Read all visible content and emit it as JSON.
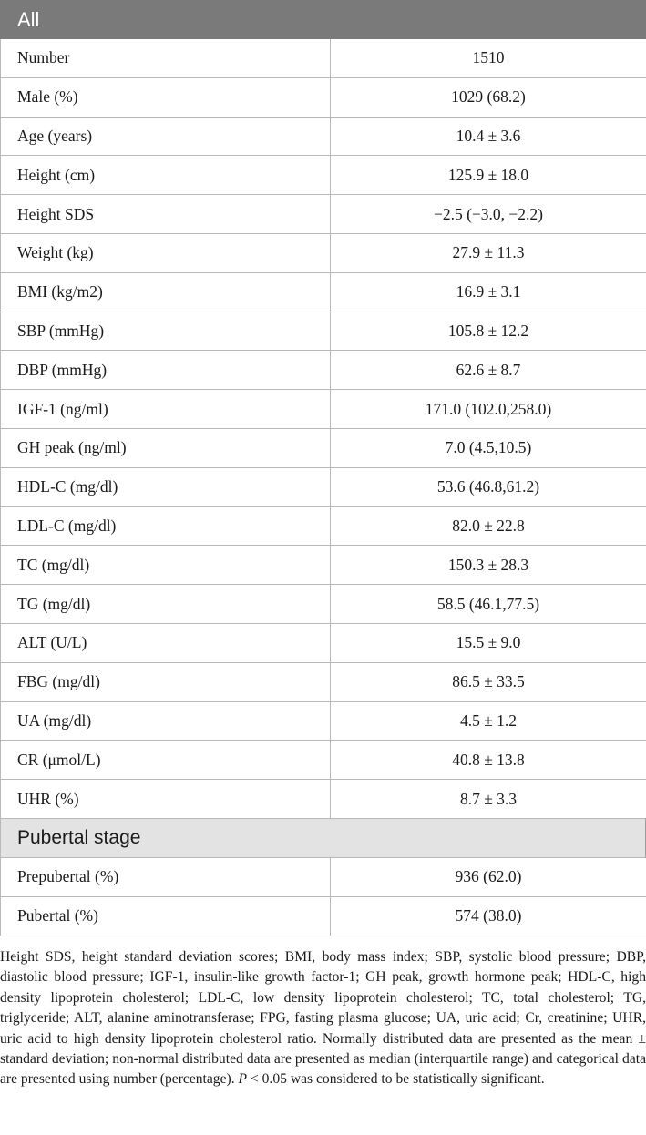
{
  "table": {
    "header": {
      "col1": "All",
      "col2": ""
    },
    "rows": [
      {
        "label": "Number",
        "value": "1510"
      },
      {
        "label": "Male (%)",
        "value": "1029 (68.2)"
      },
      {
        "label": "Age (years)",
        "value": "10.4 ± 3.6"
      },
      {
        "label": "Height (cm)",
        "value": "125.9 ± 18.0"
      },
      {
        "label": "Height SDS",
        "value": "−2.5 (−3.0, −2.2)"
      },
      {
        "label": "Weight (kg)",
        "value": "27.9 ± 11.3"
      },
      {
        "label": "BMI (kg/m2)",
        "value": "16.9 ± 3.1"
      },
      {
        "label": "SBP (mmHg)",
        "value": "105.8 ± 12.2"
      },
      {
        "label": "DBP (mmHg)",
        "value": "62.6 ± 8.7"
      },
      {
        "label": "IGF-1 (ng/ml)",
        "value": "171.0 (102.0,258.0)"
      },
      {
        "label": "GH peak (ng/ml)",
        "value": "7.0 (4.5,10.5)"
      },
      {
        "label": "HDL-C (mg/dl)",
        "value": "53.6 (46.8,61.2)"
      },
      {
        "label": "LDL-C (mg/dl)",
        "value": "82.0 ± 22.8"
      },
      {
        "label": "TC (mg/dl)",
        "value": "150.3 ± 28.3"
      },
      {
        "label": "TG (mg/dl)",
        "value": "58.5 (46.1,77.5)"
      },
      {
        "label": "ALT (U/L)",
        "value": "15.5 ± 9.0"
      },
      {
        "label": "FBG (mg/dl)",
        "value": "86.5 ± 33.5"
      },
      {
        "label": "UA (mg/dl)",
        "value": "4.5 ± 1.2"
      },
      {
        "label": "CR (μmol/L)",
        "value": "40.8 ± 13.8"
      },
      {
        "label": "UHR (%)",
        "value": "8.7 ± 3.3"
      }
    ],
    "section": {
      "title": "Pubertal stage",
      "rows": [
        {
          "label": "Prepubertal (%)",
          "value": "936 (62.0)"
        },
        {
          "label": "Pubertal (%)",
          "value": "574 (38.0)"
        }
      ]
    }
  },
  "footnote": {
    "text": "Height SDS, height standard deviation scores; BMI, body mass index; SBP, systolic blood pressure; DBP, diastolic blood pressure; IGF-1, insulin-like growth factor-1; GH peak, growth hormone peak; HDL-C, high density lipoprotein cholesterol; LDL-C, low density lipoprotein cholesterol; TC, total cholesterol; TG, triglyceride; ALT, alanine aminotransferase; FPG, fasting plasma glucose; UA, uric acid; Cr, creatinine; UHR, uric acid to high density lipoprotein cholesterol ratio. Normally distributed data are presented as the mean ± standard deviation; non-normal distributed data are presented as median (interquartile range) and categorical data are presented using number (percentage).",
    "p_symbol": "P",
    "p_text": " < 0.05 was considered to be statistically significant."
  }
}
